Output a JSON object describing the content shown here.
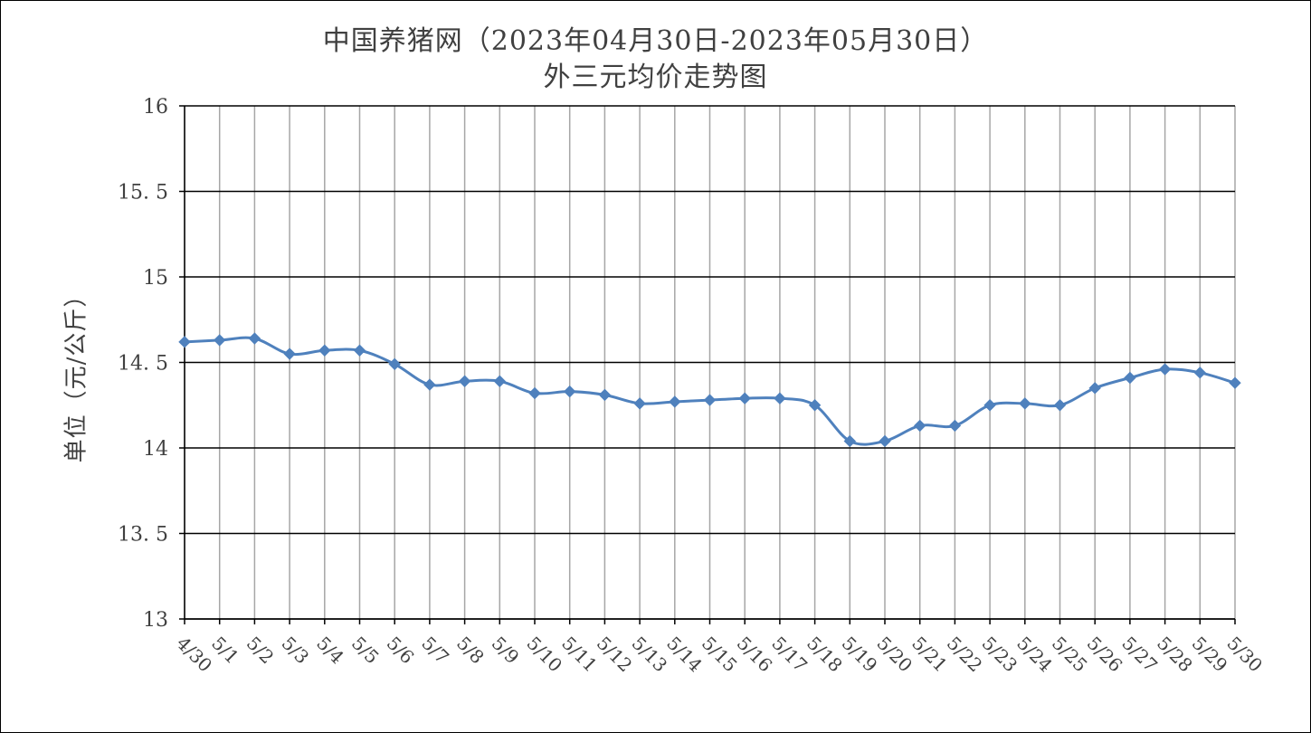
{
  "chart_data": {
    "type": "line",
    "title": "中国养猪网（2023年04月30日-2023年05月30日）",
    "subtitle": "外三元均价走势图",
    "ylabel": "单位（元/公斤）",
    "xlabel": "",
    "ylim": [
      13,
      16
    ],
    "yticks": [
      "13",
      "13.5",
      "14",
      "14.5",
      "15",
      "15.5",
      "16"
    ],
    "categories": [
      "4/30",
      "5/1",
      "5/2",
      "5/3",
      "5/4",
      "5/5",
      "5/6",
      "5/7",
      "5/8",
      "5/9",
      "5/10",
      "5/11",
      "5/12",
      "5/13",
      "5/14",
      "5/15",
      "5/16",
      "5/17",
      "5/18",
      "5/19",
      "5/20",
      "5/21",
      "5/22",
      "5/23",
      "5/24",
      "5/25",
      "5/26",
      "5/27",
      "5/28",
      "5/29",
      "5/30"
    ],
    "series": [
      {
        "values": [
          14.62,
          14.63,
          14.64,
          14.55,
          14.57,
          14.57,
          14.49,
          14.37,
          14.39,
          14.39,
          14.32,
          14.33,
          14.31,
          14.26,
          14.27,
          14.28,
          14.29,
          14.29,
          14.25,
          14.04,
          14.04,
          14.13,
          14.13,
          14.25,
          14.26,
          14.25,
          14.35,
          14.41,
          14.46,
          14.44,
          14.38
        ],
        "color": "#4F81BD",
        "marker": "diamond"
      }
    ],
    "grid": true
  }
}
